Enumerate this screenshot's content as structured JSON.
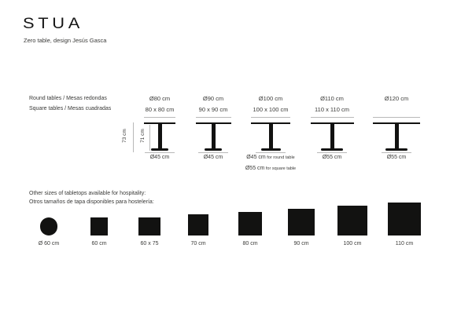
{
  "brand": {
    "logo": "STUA",
    "subtitle": "Zero table, design Jesús Gasca"
  },
  "tables_section": {
    "row_label_round": "Round tables / Mesas redondas",
    "row_label_square": "Square tables / Mesas cuadradas",
    "height_total_label": "73 cm",
    "height_under_top_label": "71 cm",
    "tables": [
      {
        "round_label": "Ø80 cm",
        "square_label": "80 x 80 cm",
        "top_cm": 80,
        "base_cm": 45,
        "base_labels": [
          {
            "text": "Ø45 cm",
            "suffix": ""
          }
        ]
      },
      {
        "round_label": "Ø90 cm",
        "square_label": "90 x 90 cm",
        "top_cm": 90,
        "base_cm": 45,
        "base_labels": [
          {
            "text": "Ø45 cm",
            "suffix": ""
          }
        ]
      },
      {
        "round_label": "Ø100 cm",
        "square_label": "100 x 100 cm",
        "top_cm": 100,
        "base_cm": 50,
        "base_labels": [
          {
            "text": "Ø45 cm",
            "suffix": "for round table"
          },
          {
            "text": "Ø55 cm",
            "suffix": "for square table"
          }
        ]
      },
      {
        "round_label": "Ø110 cm",
        "square_label": "110 x 110 cm",
        "top_cm": 110,
        "base_cm": 55,
        "base_labels": [
          {
            "text": "Ø55 cm",
            "suffix": ""
          }
        ]
      },
      {
        "round_label": "Ø120 cm",
        "square_label": "",
        "top_cm": 120,
        "base_cm": 55,
        "base_labels": [
          {
            "text": "Ø55 cm",
            "suffix": ""
          }
        ]
      }
    ]
  },
  "hospitality_section": {
    "title_en": "Other sizes of tabletops available for hospitality:",
    "title_es": "Otros tamaños de tapa disponibles para hostelería:",
    "shapes": [
      {
        "shape": "circle",
        "label": "Ø 60 cm",
        "w_cm": 60,
        "h_cm": 60
      },
      {
        "shape": "square",
        "label": "60 cm",
        "w_cm": 60,
        "h_cm": 60
      },
      {
        "shape": "rect",
        "label": "60 x 75",
        "w_cm": 75,
        "h_cm": 60
      },
      {
        "shape": "square",
        "label": "70 cm",
        "w_cm": 70,
        "h_cm": 70
      },
      {
        "shape": "square",
        "label": "80 cm",
        "w_cm": 80,
        "h_cm": 80
      },
      {
        "shape": "square",
        "label": "90 cm",
        "w_cm": 90,
        "h_cm": 90
      },
      {
        "shape": "square",
        "label": "100 cm",
        "w_cm": 100,
        "h_cm": 100
      },
      {
        "shape": "square",
        "label": "110 cm",
        "w_cm": 110,
        "h_cm": 110
      }
    ]
  },
  "colors": {
    "ink": "#121211",
    "text": "#3a3a38",
    "dim_line": "#b8b8b8",
    "background": "#ffffff"
  }
}
